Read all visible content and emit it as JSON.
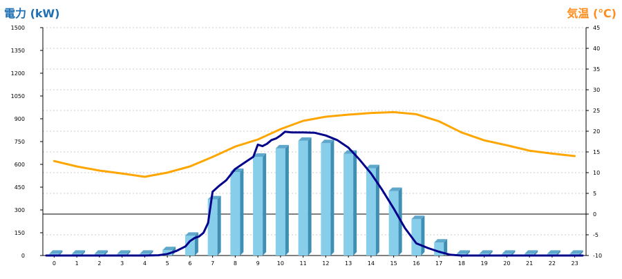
{
  "chart_data": {
    "type": "bar+line",
    "y_left_label": "電力 (kW)",
    "y_right_label": "気温 (℃)",
    "ylim_left": [
      0,
      1500
    ],
    "ylim_right": [
      -10,
      45
    ],
    "y_left_ticks": [
      "0",
      "150",
      "300",
      "450",
      "600",
      "750",
      "900",
      "1050",
      "1200",
      "1350",
      "1500"
    ],
    "y_right_ticks": [
      "-10",
      "-5",
      "0",
      "5",
      "10",
      "15",
      "20",
      "25",
      "30",
      "35",
      "40",
      "45"
    ],
    "categories": [
      "0",
      "1",
      "2",
      "3",
      "4",
      "5",
      "6",
      "7",
      "8",
      "9",
      "10",
      "11",
      "12",
      "13",
      "14",
      "15",
      "16",
      "17",
      "18",
      "19",
      "20",
      "21",
      "22",
      "23"
    ],
    "grid": true,
    "bars": {
      "axis": "left",
      "color": "#87ceeb",
      "values": [
        12,
        12,
        12,
        12,
        12,
        35,
        130,
        370,
        550,
        650,
        705,
        755,
        740,
        670,
        575,
        425,
        240,
        85,
        12,
        12,
        12,
        12,
        12,
        12
      ]
    },
    "power_line": {
      "axis": "left",
      "color": "#00008b",
      "x": [
        -0.35,
        4.0,
        4.6,
        5.0,
        5.4,
        5.8,
        6.0,
        6.2,
        6.4,
        6.6,
        6.8,
        7.0,
        7.3,
        7.6,
        8.0,
        8.4,
        8.8,
        9.0,
        9.2,
        9.4,
        9.6,
        9.8,
        10.0,
        10.2,
        10.5,
        10.8,
        11.0,
        11.5,
        12.0,
        12.5,
        13.0,
        13.5,
        14.0,
        14.5,
        15.0,
        15.5,
        16.0,
        16.5,
        17.0,
        17.5,
        18.0,
        23.35
      ],
      "y": [
        0,
        0,
        2,
        10,
        30,
        60,
        95,
        115,
        125,
        150,
        215,
        420,
        460,
        495,
        570,
        610,
        650,
        730,
        720,
        735,
        760,
        770,
        790,
        815,
        810,
        810,
        810,
        808,
        790,
        760,
        710,
        630,
        540,
        430,
        310,
        180,
        80,
        50,
        25,
        5,
        0,
        0
      ]
    },
    "temperature_line": {
      "axis": "right",
      "color": "#ffa500",
      "x": [
        0,
        1,
        2,
        3,
        4,
        5,
        6,
        7,
        8,
        9,
        10,
        11,
        12,
        13,
        14,
        15,
        16,
        17,
        18,
        19,
        20,
        21,
        22,
        23
      ],
      "y": [
        12.8,
        11.5,
        10.5,
        9.8,
        9.0,
        10.0,
        11.5,
        13.8,
        16.3,
        18.0,
        20.5,
        22.5,
        23.5,
        24.0,
        24.4,
        24.6,
        24.1,
        22.4,
        19.7,
        17.8,
        16.6,
        15.3,
        14.6,
        14.0
      ]
    }
  }
}
